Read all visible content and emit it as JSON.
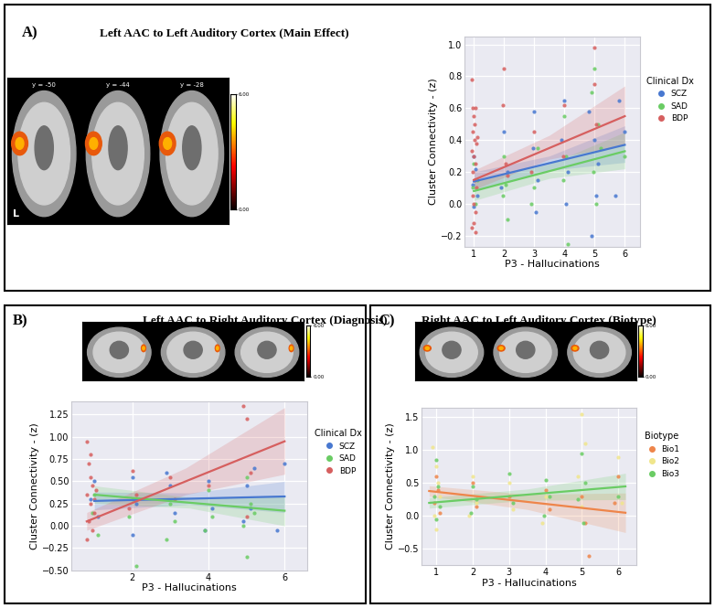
{
  "chart_data": [
    {
      "type": "scatter",
      "title": "Left AAC to Left Auditory Cortex (Main Effect)",
      "annotations": {
        "panel": "A)",
        "slices": [
          "y = -50",
          "y = -44",
          "y = -28"
        ],
        "side": "L"
      },
      "colorbar": {
        "range": [
          0,
          6
        ],
        "ticks": [
          {
            "value": 0,
            "label": "0.00"
          },
          {
            "value": 6,
            "label": "6.00"
          }
        ]
      },
      "x_label": "P3 - Hallucinations",
      "y_label": "Cluster Connectivity - (z)",
      "legend_title": "Clinical Dx",
      "legend": "outside right",
      "grid": true,
      "xlim": [
        0.7,
        6.5
      ],
      "xticks": [
        1,
        2,
        3,
        4,
        5,
        6
      ],
      "ylim": [
        -0.27,
        1.05
      ],
      "yticks": [
        {
          "value": -0.2,
          "label": "−0.2"
        },
        {
          "value": 0.0,
          "label": "0.0"
        },
        {
          "value": 0.2,
          "label": "0.2"
        },
        {
          "value": 0.4,
          "label": "0.4"
        },
        {
          "value": 0.6,
          "label": "0.6"
        },
        {
          "value": 0.8,
          "label": "0.8"
        },
        {
          "value": 1.0,
          "label": "1.0"
        }
      ],
      "series": [
        {
          "name": "SCZ",
          "color": "#4878d0",
          "x": [
            1.0,
            1.05,
            0.95,
            1.1,
            1.0,
            2.0,
            2.1,
            1.9,
            3.0,
            2.95,
            3.1,
            3.05,
            4.0,
            3.9,
            4.1,
            4.05,
            4.8,
            5.0,
            5.1,
            4.9,
            5.05,
            5.7,
            5.8,
            6.0
          ],
          "values": [
            0.3,
            0.22,
            0.12,
            0.05,
            -0.02,
            0.45,
            0.2,
            0.1,
            0.58,
            0.35,
            0.15,
            -0.05,
            0.65,
            0.4,
            0.2,
            0.0,
            0.58,
            0.4,
            0.25,
            -0.2,
            0.05,
            0.05,
            0.65,
            0.45
          ],
          "fit": {
            "x": [
              1,
              3.5,
              6
            ],
            "values": [
              0.14,
              0.255,
              0.37
            ],
            "lower": [
              0.08,
              0.21,
              0.26
            ],
            "upper": [
              0.2,
              0.3,
              0.49
            ]
          }
        },
        {
          "name": "SAD",
          "color": "#6acc64",
          "x": [
            1.0,
            0.95,
            1.05,
            1.1,
            2.0,
            2.1,
            1.95,
            2.05,
            3.0,
            3.1,
            2.9,
            4.0,
            4.1,
            3.95,
            4.05,
            4.9,
            5.0,
            5.1,
            4.95,
            5.05,
            5.2,
            6.0
          ],
          "values": [
            0.25,
            0.1,
            0.0,
            0.15,
            0.3,
            -0.1,
            0.05,
            0.12,
            0.1,
            0.35,
            0.0,
            0.55,
            -0.25,
            0.15,
            0.3,
            0.7,
            0.85,
            0.5,
            0.2,
            0.0,
            0.35,
            0.3
          ],
          "fit": {
            "x": [
              1,
              3.5,
              6
            ],
            "values": [
              0.08,
              0.205,
              0.33
            ],
            "lower": [
              0.02,
              0.16,
              0.22
            ],
            "upper": [
              0.14,
              0.25,
              0.45
            ]
          }
        },
        {
          "name": "BDP",
          "color": "#d65f5f",
          "x": [
            0.92,
            0.95,
            1.0,
            1.05,
            0.97,
            1.03,
            1.08,
            0.93,
            1.0,
            1.05,
            0.97,
            1.02,
            1.07,
            0.95,
            1.0,
            1.04,
            0.98,
            1.06,
            0.94,
            1.02,
            1.1,
            2.0,
            1.95,
            2.05,
            2.1,
            3.0,
            2.9,
            4.0,
            3.95,
            4.98,
            5.05,
            5.0
          ],
          "values": [
            0.78,
            0.6,
            0.55,
            0.6,
            0.45,
            0.4,
            0.38,
            0.33,
            0.3,
            0.25,
            0.2,
            0.15,
            0.1,
            0.05,
            0.0,
            -0.05,
            -0.12,
            -0.18,
            -0.15,
            0.5,
            0.42,
            0.85,
            0.62,
            0.25,
            0.18,
            0.45,
            0.2,
            0.62,
            0.3,
            0.98,
            0.5,
            0.75
          ],
          "fit": {
            "x": [
              1,
              3.5,
              6
            ],
            "values": [
              0.15,
              0.35,
              0.55
            ],
            "lower": [
              0.09,
              0.28,
              0.37
            ],
            "upper": [
              0.21,
              0.43,
              0.74
            ]
          }
        }
      ]
    },
    {
      "type": "scatter",
      "title": "Left AAC to Right Auditory Cortex (Diagnosis)",
      "annotations": {
        "panel": "B)"
      },
      "colorbar": {
        "range": [
          0,
          6
        ],
        "ticks": [
          {
            "value": 0,
            "label": "0.00"
          },
          {
            "value": 6,
            "label": "6.00"
          }
        ]
      },
      "x_label": "P3 - Hallucinations",
      "y_label": "Cluster Connectivity - (z)",
      "legend_title": "Clinical Dx",
      "legend": "outside right",
      "grid": true,
      "xlim": [
        0.4,
        6.6
      ],
      "xticks": [
        2,
        4,
        6
      ],
      "ylim": [
        -0.5,
        1.4
      ],
      "yticks": [
        {
          "value": -0.5,
          "label": "−0.50"
        },
        {
          "value": -0.25,
          "label": "−0.25"
        },
        {
          "value": 0.0,
          "label": "0.00"
        },
        {
          "value": 0.25,
          "label": "0.25"
        },
        {
          "value": 0.5,
          "label": "0.50"
        },
        {
          "value": 0.75,
          "label": "0.75"
        },
        {
          "value": 1.0,
          "label": "1.00"
        },
        {
          "value": 1.25,
          "label": "1.25"
        }
      ],
      "series": [
        {
          "name": "SCZ",
          "color": "#4878d0",
          "x": [
            0.9,
            1.0,
            1.1,
            2.0,
            2.1,
            2.0,
            3.0,
            3.1,
            2.9,
            4.0,
            4.1,
            3.9,
            5.0,
            5.1,
            4.9,
            5.2,
            6.0,
            5.8
          ],
          "values": [
            0.3,
            0.5,
            0.1,
            0.55,
            0.25,
            -0.1,
            0.45,
            0.15,
            0.6,
            0.5,
            0.2,
            -0.05,
            0.45,
            0.2,
            0.05,
            0.65,
            0.7,
            -0.05
          ],
          "fit": {
            "x": [
              1,
              3.5,
              6
            ],
            "values": [
              0.28,
              0.305,
              0.33
            ],
            "lower": [
              0.18,
              0.24,
              0.15
            ],
            "upper": [
              0.38,
              0.37,
              0.5
            ]
          }
        },
        {
          "name": "SAD",
          "color": "#6acc64",
          "x": [
            1.0,
            1.1,
            0.95,
            2.0,
            1.9,
            2.1,
            3.0,
            3.1,
            2.9,
            4.0,
            4.1,
            3.9,
            5.0,
            5.1,
            4.9,
            5.0,
            5.2
          ],
          "values": [
            0.35,
            -0.1,
            0.15,
            0.3,
            0.1,
            -0.45,
            0.25,
            0.05,
            -0.15,
            0.4,
            0.1,
            -0.05,
            0.55,
            0.25,
            0.0,
            -0.35,
            0.15
          ],
          "fit": {
            "x": [
              1,
              3.5,
              6
            ],
            "values": [
              0.35,
              0.26,
              0.17
            ],
            "lower": [
              0.25,
              0.2,
              0.0
            ],
            "upper": [
              0.45,
              0.32,
              0.34
            ]
          }
        },
        {
          "name": "BDP",
          "color": "#d65f5f",
          "x": [
            0.8,
            0.85,
            0.9,
            0.95,
            0.8,
            0.9,
            1.0,
            0.85,
            0.95,
            0.8,
            1.0,
            0.9,
            1.05,
            2.0,
            2.1,
            1.9,
            3.0,
            3.1,
            4.0,
            4.9,
            5.0,
            5.1,
            5.0
          ],
          "values": [
            0.95,
            0.7,
            0.55,
            0.45,
            0.35,
            0.25,
            0.15,
            0.05,
            -0.05,
            -0.15,
            0.3,
            0.8,
            0.4,
            0.62,
            0.35,
            0.2,
            0.55,
            0.3,
            0.45,
            1.35,
            1.2,
            0.6,
            0.1
          ],
          "fit": {
            "x": [
              0.8,
              3.4,
              6
            ],
            "values": [
              0.05,
              0.5,
              0.95
            ],
            "lower": [
              -0.05,
              0.35,
              0.58
            ],
            "upper": [
              0.15,
              0.65,
              1.33
            ]
          }
        }
      ]
    },
    {
      "type": "scatter",
      "title": "Right AAC to Left Auditory Cortex (Biotype)",
      "annotations": {
        "panel": "C)"
      },
      "colorbar": {
        "range": [
          0,
          6
        ],
        "ticks": [
          {
            "value": 0,
            "label": "0.00"
          },
          {
            "value": 6,
            "label": "6.00"
          }
        ]
      },
      "x_label": "P3 - Hallucinations",
      "y_label": "Cluster Connectivity - (z)",
      "legend_title": "Biotype",
      "legend": "outside right",
      "grid": true,
      "xlim": [
        0.6,
        6.5
      ],
      "xticks": [
        1,
        2,
        3,
        4,
        5,
        6
      ],
      "ylim": [
        -0.75,
        1.65
      ],
      "yticks": [
        {
          "value": -0.5,
          "label": "−0.5"
        },
        {
          "value": 0.0,
          "label": "0.0"
        },
        {
          "value": 0.5,
          "label": "0.5"
        },
        {
          "value": 1.0,
          "label": "1.0"
        },
        {
          "value": 1.5,
          "label": "1.5"
        }
      ],
      "series": [
        {
          "name": "Bio1",
          "color": "#ee854a",
          "x": [
            1,
            1.05,
            0.95,
            1.1,
            2,
            2.1,
            3,
            4,
            4.1,
            5,
            5.1,
            5.2,
            6,
            5.9
          ],
          "values": [
            0.6,
            0.4,
            0.2,
            0.05,
            0.5,
            0.15,
            0.3,
            0.4,
            0.1,
            0.3,
            -0.1,
            -0.6,
            0.6,
            0.2
          ],
          "fit": {
            "x": [
              0.8,
              3.5,
              6.2
            ],
            "values": [
              0.38,
              0.215,
              0.05
            ],
            "lower": [
              0.3,
              0.1,
              -0.25
            ],
            "upper": [
              0.46,
              0.33,
              0.35
            ]
          }
        },
        {
          "name": "Bio2",
          "color": "#f0e68c",
          "x": [
            0.9,
            1,
            1.05,
            1.1,
            0.95,
            1,
            2,
            2.1,
            1.9,
            3,
            3.1,
            4,
            3.9,
            5,
            5.1,
            4.9,
            5,
            6,
            6.1
          ],
          "values": [
            1.05,
            0.75,
            0.5,
            0.3,
            0.0,
            -0.2,
            0.6,
            0.2,
            0.0,
            0.5,
            0.1,
            0.3,
            -0.1,
            1.55,
            1.1,
            0.6,
            0.15,
            0.9,
            0.2
          ]
        },
        {
          "name": "Bio3",
          "color": "#6acc64",
          "x": [
            1,
            1.05,
            0.95,
            1.1,
            1,
            2,
            2.1,
            1.95,
            3,
            3.1,
            4,
            4.1,
            3.95,
            5,
            5.1,
            4.9,
            5.05,
            6
          ],
          "values": [
            0.85,
            0.45,
            0.3,
            0.15,
            -0.05,
            0.45,
            0.25,
            0.05,
            0.65,
            0.2,
            0.55,
            0.3,
            0.0,
            0.95,
            0.5,
            0.25,
            -0.1,
            0.3
          ],
          "fit": {
            "x": [
              0.8,
              3.5,
              6.2
            ],
            "values": [
              0.2,
              0.325,
              0.45
            ],
            "lower": [
              0.12,
              0.24,
              0.25
            ],
            "upper": [
              0.28,
              0.41,
              0.65
            ]
          }
        }
      ]
    }
  ]
}
